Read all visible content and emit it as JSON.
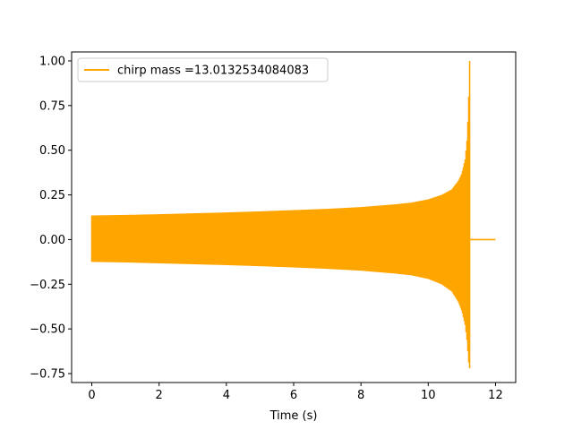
{
  "chart_data": {
    "type": "line",
    "xlabel": "Time (s)",
    "ylabel": "",
    "xlim": [
      -0.6,
      12.6
    ],
    "ylim": [
      -0.8,
      1.05
    ],
    "xticks": [
      0,
      2,
      4,
      6,
      8,
      10,
      12
    ],
    "yticks": [
      -0.75,
      -0.5,
      -0.25,
      0.0,
      0.25,
      0.5,
      0.75,
      1.0
    ],
    "xtick_labels": [
      "0",
      "2",
      "4",
      "6",
      "8",
      "10",
      "12"
    ],
    "ytick_labels": [
      "−0.75",
      "−0.50",
      "−0.25",
      "0.00",
      "0.25",
      "0.50",
      "0.75",
      "1.00"
    ],
    "grid": false,
    "legend_position": "upper-left",
    "series": [
      {
        "name": "chirp mass =13.0132534084083",
        "color": "#FFA500",
        "envelope": {
          "t": [
            0.0,
            1.0,
            2.0,
            3.0,
            4.0,
            5.0,
            6.0,
            7.0,
            8.0,
            9.0,
            9.5,
            10.0,
            10.4,
            10.7,
            10.9,
            11.0,
            11.1,
            11.15,
            11.2,
            11.22
          ],
          "upper": [
            0.135,
            0.138,
            0.142,
            0.147,
            0.152,
            0.158,
            0.165,
            0.172,
            0.182,
            0.197,
            0.207,
            0.225,
            0.25,
            0.28,
            0.33,
            0.37,
            0.45,
            0.55,
            0.75,
            1.0
          ],
          "lower": [
            -0.125,
            -0.128,
            -0.133,
            -0.138,
            -0.143,
            -0.149,
            -0.156,
            -0.164,
            -0.174,
            -0.19,
            -0.2,
            -0.22,
            -0.25,
            -0.29,
            -0.35,
            -0.4,
            -0.48,
            -0.56,
            -0.68,
            -0.72
          ]
        },
        "tail": {
          "x": [
            11.22,
            12.0
          ],
          "y": [
            0.0,
            0.0
          ]
        }
      }
    ]
  }
}
